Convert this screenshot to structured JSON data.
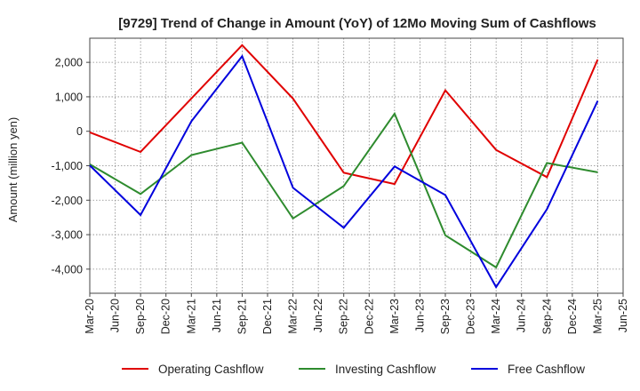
{
  "chart_data": {
    "type": "line",
    "title": "[9729]  Trend of Change in Amount (YoY) of 12Mo Moving Sum of Cashflows",
    "ylabel": "Amount (million yen)",
    "xlabel": "",
    "ylim": [
      -4700,
      2700
    ],
    "yticks": [
      2000,
      1000,
      0,
      -1000,
      -2000,
      -3000,
      -4000
    ],
    "ytick_labels": [
      "2,000",
      "1,000",
      "0",
      "-1,000",
      "-2,000",
      "-3,000",
      "-4,000"
    ],
    "categories": [
      "Mar-20",
      "Jun-20",
      "Sep-20",
      "Dec-20",
      "Mar-21",
      "Jun-21",
      "Sep-21",
      "Dec-21",
      "Mar-22",
      "Jun-22",
      "Sep-22",
      "Dec-22",
      "Mar-23",
      "Jun-23",
      "Sep-23",
      "Dec-23",
      "Mar-24",
      "Jun-24",
      "Sep-24",
      "Dec-24",
      "Mar-25",
      "Jun-25"
    ],
    "grid": true,
    "legend_position": "bottom",
    "series": [
      {
        "name": "Operating Cashflow",
        "color": "#e00000",
        "values": [
          -30,
          null,
          -600,
          null,
          null,
          null,
          2500,
          null,
          950,
          null,
          -1200,
          null,
          -1530,
          null,
          1190,
          null,
          -540,
          null,
          -1330,
          null,
          2080,
          null
        ]
      },
      {
        "name": "Investing Cashflow",
        "color": "#2e8b2e",
        "values": [
          -960,
          null,
          -1820,
          null,
          -690,
          null,
          -330,
          null,
          -2530,
          null,
          -1590,
          null,
          510,
          null,
          -3020,
          null,
          -3950,
          null,
          -920,
          null,
          -1190,
          null
        ]
      },
      {
        "name": "Free Cashflow",
        "color": "#0000dd",
        "values": [
          -990,
          null,
          -2430,
          null,
          290,
          null,
          2180,
          null,
          -1640,
          null,
          -2800,
          null,
          -1020,
          null,
          -1850,
          null,
          -4520,
          null,
          -2260,
          null,
          880,
          null
        ]
      }
    ]
  }
}
